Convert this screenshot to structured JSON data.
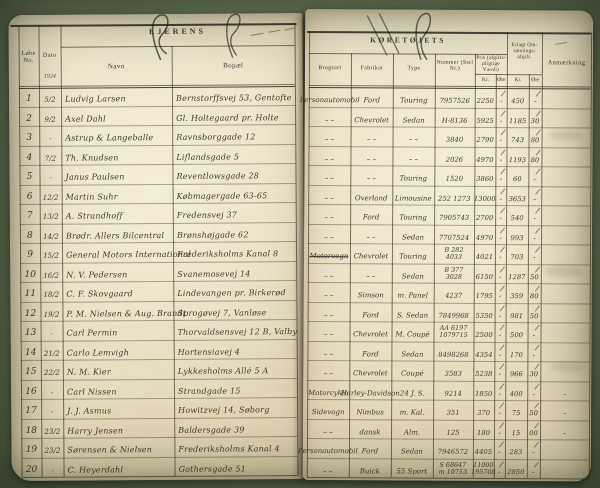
{
  "book": {
    "year_label": "1924",
    "left_section_title": "EJERENS",
    "right_section_title": "KØRETØJETS",
    "columns": {
      "no": "Løbe No.",
      "date": "Dato",
      "name": "Navn",
      "residence": "Bopæl",
      "use": "Brugsart",
      "make": "Fabrikat",
      "type": "Type",
      "number": "Nummer (Stel Nr.)",
      "price": "Pris (afgifts- pligtige Værdi)",
      "tax": "Erlagt Om- sætnings- afgift.",
      "kr": "Kr.",
      "ore": "Øre",
      "remark": "Anmærkning"
    },
    "rows": [
      {
        "no": "1",
        "date": "5/2",
        "name": "Ludvig Larsen",
        "residence": "Bernstorffsvej 53, Gentofte",
        "use": "Personautomobil",
        "make": "Ford",
        "type": "Touring",
        "number": "7957526",
        "price_kr": "2250",
        "price_ore": "-",
        "tax_kr": "450",
        "tax_ore": "-",
        "remark": ""
      },
      {
        "no": "2",
        "date": "9/2",
        "name": "Axel Dahl",
        "residence": "Gl. Holtegaard pr. Holte",
        "use": "– –",
        "make": "Chevrolet",
        "type": "Sedan",
        "number": "H-8136",
        "price_kr": "5925",
        "price_ore": "-",
        "tax_kr": "1185",
        "tax_ore": "30",
        "remark": ""
      },
      {
        "no": "3",
        "date": "-",
        "name": "Astrup & Langeballe",
        "residence": "Ravnsborggade 12",
        "use": "– –",
        "make": "– –",
        "type": "– –",
        "number": "3840",
        "price_kr": "2790",
        "price_ore": "-",
        "tax_kr": "743",
        "tax_ore": "80",
        "remark": ""
      },
      {
        "no": "4",
        "date": "7/2",
        "name": "Th. Knudsen",
        "residence": "Liflandsgade 5",
        "use": "– –",
        "make": "– –",
        "type": "– –",
        "number": "2026",
        "price_kr": "4970",
        "price_ore": "-",
        "tax_kr": "1193",
        "tax_ore": "80",
        "remark": ""
      },
      {
        "no": "5",
        "date": "-",
        "name": "Janus Paulsen",
        "residence": "Reventlowsgade 28",
        "use": "– –",
        "make": "– –",
        "type": "Touring",
        "number": "1520",
        "price_kr": "3860",
        "price_ore": "-",
        "tax_kr": "60",
        "tax_ore": "-",
        "remark": ""
      },
      {
        "no": "6",
        "date": "12/2",
        "name": "Martin Suhr",
        "residence": "Købmagergade 63-65",
        "use": "– –",
        "make": "Overland",
        "type": "Limousine",
        "number": "252 1273",
        "price_kr": "13000",
        "price_ore": "-",
        "tax_kr": "3653",
        "tax_ore": "-",
        "remark": ""
      },
      {
        "no": "7",
        "date": "13/2",
        "name": "A. Strandhoff",
        "residence": "Fredensvej 37",
        "use": "– –",
        "make": "Ford",
        "type": "Touring",
        "number": "7905743",
        "price_kr": "2700",
        "price_ore": "-",
        "tax_kr": "540",
        "tax_ore": "-",
        "remark": ""
      },
      {
        "no": "8",
        "date": "14/2",
        "name": "Brødr. Allers Bilcentral",
        "residence": "Brønshøjgade 62",
        "use": "– –",
        "make": "– –",
        "type": "Sedan",
        "number": "7707524",
        "price_kr": "4970",
        "price_ore": "-",
        "tax_kr": "993",
        "tax_ore": "-",
        "remark": ""
      },
      {
        "no": "9",
        "date": "15/2",
        "name": "General Motors International",
        "residence": "Frederiksholms Kanal 8",
        "use": "Motorvogn",
        "use_struck": true,
        "make": "Chevrolet",
        "type": "Touring",
        "number": "B 282",
        "number2": "4033",
        "price_kr": "4021",
        "price_ore": "-",
        "tax_kr": "703",
        "tax_ore": "-",
        "remark": ""
      },
      {
        "no": "10",
        "date": "16/2",
        "name": "N. V. Pedersen",
        "residence": "Svanemosevej 14",
        "use": "– –",
        "make": "– –",
        "type": "Sedan",
        "number": "B 377",
        "number2": "3028",
        "price_kr": "6150",
        "price_ore": "-",
        "tax_kr": "1287",
        "tax_ore": "50",
        "remark": ""
      },
      {
        "no": "11",
        "date": "18/2",
        "name": "C. F. Skovgaard",
        "residence": "Lindevangen pr. Birkerød",
        "use": "– –",
        "make": "Simson",
        "type": "m. Panel",
        "number": "4237",
        "price_kr": "1795",
        "price_ore": "-",
        "tax_kr": "359",
        "tax_ore": "80",
        "remark": ""
      },
      {
        "no": "12",
        "date": "19/2",
        "name": "P. M. Nielsen & Aug. Brandt",
        "residence": "Sprogøvej 7, Vanløse",
        "use": "– –",
        "make": "Ford",
        "type": "S. Sedan",
        "number": "7849968",
        "price_kr": "5350",
        "price_ore": "-",
        "tax_kr": "981",
        "tax_ore": "50",
        "remark": ""
      },
      {
        "no": "13",
        "date": "-",
        "name": "Carl Permin",
        "residence": "Thorvaldsensvej 12 B, Valby",
        "use": "– –",
        "make": "Chevrolet",
        "type": "M. Coupé",
        "number": "AA 6197",
        "number2": "1079715",
        "price_kr": "2500",
        "price_ore": "-",
        "tax_kr": "500",
        "tax_ore": "-",
        "remark": ""
      },
      {
        "no": "14",
        "date": "21/2",
        "name": "Carlo Lemvigh",
        "residence": "Hortensiavej 4",
        "use": "– –",
        "make": "Ford",
        "type": "Sedan",
        "number": "8498268",
        "price_kr": "4354",
        "price_ore": "-",
        "tax_kr": "170",
        "tax_ore": "-",
        "remark": ""
      },
      {
        "no": "15",
        "date": "22/2",
        "name": "N. M. Kier",
        "residence": "Lykkesholms Allé 5 A",
        "use": "– –",
        "make": "Chevrolet",
        "type": "Coupé",
        "number": "3583",
        "price_kr": "5238",
        "price_ore": "-",
        "tax_kr": "966",
        "tax_ore": "30",
        "remark": ""
      },
      {
        "no": "16",
        "date": "-",
        "name": "Carl Nissen",
        "residence": "Strandgade 15",
        "use": "Motorcykle",
        "make": "Harley-Davidson",
        "type": "24 J. S.",
        "number": "9214",
        "price_kr": "1850",
        "price_ore": "-",
        "tax_kr": "400",
        "tax_ore": "-",
        "remark": "-"
      },
      {
        "no": "17",
        "date": "-",
        "name": "J. J. Asmus",
        "residence": "Howitzvej 14, Søborg",
        "use": "Sidevogn",
        "make": "Nimbus",
        "type": "m. Kal.",
        "number": "351",
        "price_kr": "370",
        "price_ore": "-",
        "tax_kr": "75",
        "tax_ore": "50",
        "remark": "-"
      },
      {
        "no": "18",
        "date": "23/2",
        "name": "Harry Jensen",
        "residence": "Baldersgade 39",
        "use": "– –",
        "make": "dansk",
        "type": "Alm.",
        "number": "125",
        "price_kr": "180",
        "price_ore": "-",
        "tax_kr": "15",
        "tax_ore": "00",
        "remark": "-"
      },
      {
        "no": "19",
        "date": "23/2",
        "name": "Sørensen & Nielsen",
        "residence": "Frederiksholms Kanal 4",
        "use": "Personautomobil",
        "make": "Ford",
        "type": "Sedan",
        "number": "7946572",
        "price_kr": "4405",
        "price_ore": "-",
        "tax_kr": "283",
        "tax_ore": "-",
        "remark": ""
      },
      {
        "no": "20",
        "date": "-",
        "name": "C. Heyerdahl",
        "residence": "Gothersgade 51",
        "use": "– –",
        "make": "Buick",
        "type": "55 Sport",
        "number": "S 68647",
        "number2": "m 10753",
        "price_kr": "11000",
        "price_note": "195708",
        "price_ore": "-",
        "tax_kr": "2850",
        "tax_ore": "-",
        "remark": ""
      }
    ]
  }
}
